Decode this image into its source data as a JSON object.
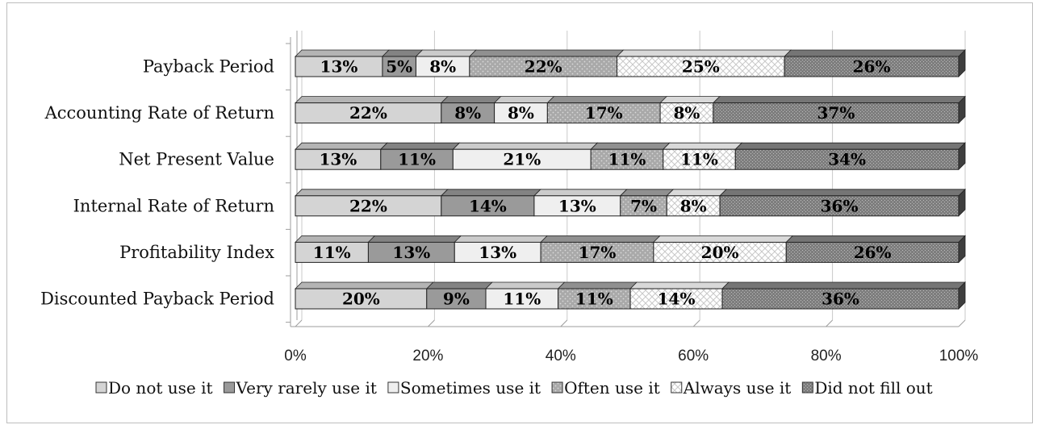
{
  "chart_data": {
    "type": "bar",
    "orientation": "horizontal",
    "stacked": true,
    "percent_stacked": true,
    "three_d": true,
    "categories": [
      "Payback Period",
      "Accounting Rate of Return",
      "Net Present Value",
      "Internal Rate of Return",
      "Profitability Index",
      "Discounted Payback Period"
    ],
    "series": [
      {
        "name": "Do not use it",
        "values": [
          13,
          22,
          13,
          22,
          11,
          20
        ],
        "color": "#d4d4d4",
        "pattern": "solid"
      },
      {
        "name": "Very rarely use it",
        "values": [
          5,
          8,
          11,
          14,
          13,
          9
        ],
        "color": "#9a9a9a",
        "pattern": "solid"
      },
      {
        "name": "Sometimes use it",
        "values": [
          8,
          8,
          21,
          13,
          13,
          11
        ],
        "color": "#efefef",
        "pattern": "solid"
      },
      {
        "name": "Often use it",
        "values": [
          22,
          17,
          11,
          7,
          17,
          11
        ],
        "color": "#a9a9a9",
        "pattern": "dotted"
      },
      {
        "name": "Always use it",
        "values": [
          25,
          8,
          11,
          8,
          20,
          14
        ],
        "color": "#ffffff",
        "pattern": "crosshatch"
      },
      {
        "name": "Did not fill out",
        "values": [
          26,
          37,
          34,
          36,
          26,
          36
        ],
        "color": "#8a8a8a",
        "pattern": "stipple"
      }
    ],
    "data_labels": [
      [
        "13%",
        "5%",
        "8%",
        "22%",
        "25%",
        "26%"
      ],
      [
        "22%",
        "8%",
        "8%",
        "17%",
        "8%",
        "37%"
      ],
      [
        "13%",
        "11%",
        "21%",
        "11%",
        "11%",
        "34%"
      ],
      [
        "22%",
        "14%",
        "13%",
        "7%",
        "8%",
        "36%"
      ],
      [
        "11%",
        "13%",
        "13%",
        "17%",
        "20%",
        "26%"
      ],
      [
        "20%",
        "9%",
        "11%",
        "11%",
        "14%",
        "36%"
      ]
    ],
    "x_ticks": [
      "0%",
      "20%",
      "40%",
      "60%",
      "80%",
      "100%"
    ],
    "xlim": [
      0,
      100
    ],
    "title": "",
    "xlabel": "",
    "ylabel": "",
    "grid": true,
    "legend_position": "bottom"
  }
}
